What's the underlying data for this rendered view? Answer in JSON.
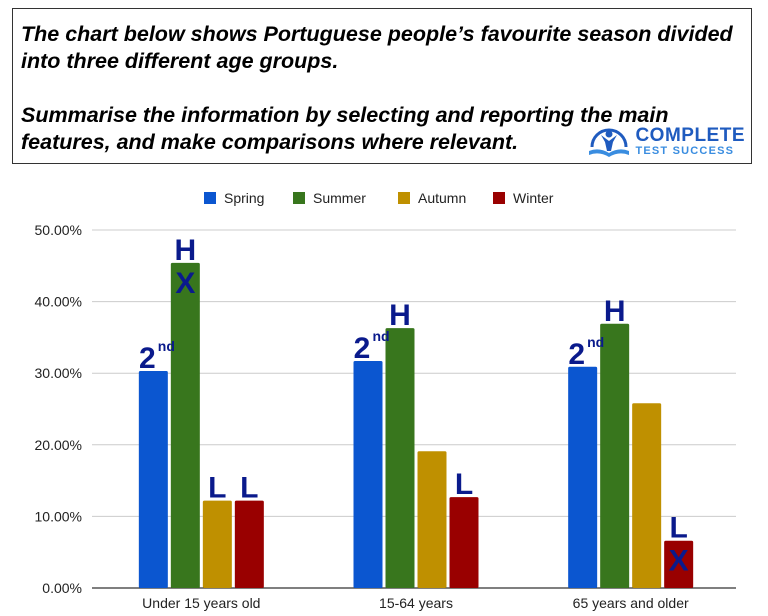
{
  "prompt": {
    "line1": "The chart below shows Portuguese people’s favourite season divided into three different age groups.",
    "line2": "Summarise the information by selecting and reporting the main features, and make comparisons where relevant."
  },
  "logo": {
    "line1": "COMPLETE",
    "line2": "TEST SUCCESS"
  },
  "chart_data": {
    "type": "bar",
    "title": "",
    "xlabel": "",
    "ylabel": "",
    "categories": [
      "Under 15 years old",
      "15-64 years",
      "65 years and older"
    ],
    "series": [
      {
        "name": "Spring",
        "color": "#0b56d0",
        "values": [
          30.3,
          31.7,
          30.9
        ]
      },
      {
        "name": "Summer",
        "color": "#38761d",
        "values": [
          45.4,
          36.3,
          36.9
        ]
      },
      {
        "name": "Autumn",
        "color": "#bf9000",
        "values": [
          12.2,
          19.1,
          25.8
        ]
      },
      {
        "name": "Winter",
        "color": "#990000",
        "values": [
          12.2,
          12.7,
          6.6
        ]
      }
    ],
    "ylim": [
      0,
      50
    ],
    "yticks": [
      "0.00%",
      "10.00%",
      "20.00%",
      "30.00%",
      "40.00%",
      "50.00%"
    ],
    "grid": true,
    "legend_position": "top",
    "annotations": [
      {
        "category": 0,
        "series": 0,
        "text": "2",
        "sup": "nd"
      },
      {
        "category": 0,
        "series": 1,
        "text": "H",
        "inside": "X"
      },
      {
        "category": 0,
        "series": 2,
        "text": "L"
      },
      {
        "category": 0,
        "series": 3,
        "text": "L"
      },
      {
        "category": 1,
        "series": 0,
        "text": "2",
        "sup": "nd"
      },
      {
        "category": 1,
        "series": 1,
        "text": "H"
      },
      {
        "category": 1,
        "series": 3,
        "text": "L"
      },
      {
        "category": 2,
        "series": 0,
        "text": "2",
        "sup": "nd"
      },
      {
        "category": 2,
        "series": 1,
        "text": "H"
      },
      {
        "category": 2,
        "series": 3,
        "text": "L",
        "inside": "X"
      }
    ],
    "annotation_color": "#0a1a8c"
  }
}
